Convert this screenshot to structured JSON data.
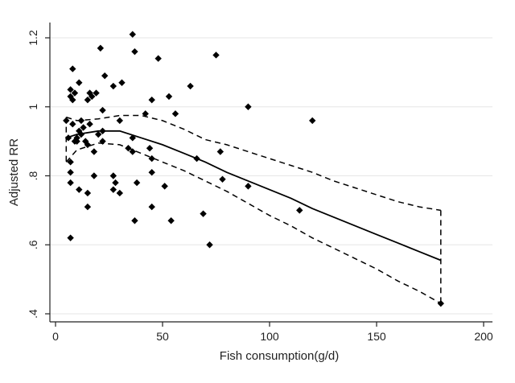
{
  "chart_data": {
    "type": "scatter",
    "title": "",
    "xlabel": "Fish consumption(g/d)",
    "ylabel": "Adjusted RR",
    "xlim": [
      0,
      200
    ],
    "ylim": [
      0.4,
      1.22
    ],
    "x_ticks": [
      0,
      50,
      100,
      150,
      200
    ],
    "x_tick_labels": [
      "0",
      "50",
      "100",
      "150",
      "200"
    ],
    "y_ticks": [
      0.4,
      0.6,
      0.8,
      1.0,
      1.2
    ],
    "y_tick_labels": [
      ".4",
      ".6",
      ".8",
      "1",
      "1.2"
    ],
    "grid": true,
    "points": [
      [
        5,
        0.96
      ],
      [
        6,
        0.91
      ],
      [
        7,
        0.84
      ],
      [
        7,
        0.81
      ],
      [
        7,
        0.78
      ],
      [
        7,
        0.62
      ],
      [
        7,
        1.03
      ],
      [
        7,
        1.05
      ],
      [
        8,
        1.11
      ],
      [
        8,
        1.02
      ],
      [
        8,
        0.95
      ],
      [
        9,
        0.9
      ],
      [
        9,
        1.04
      ],
      [
        10,
        0.91
      ],
      [
        10,
        0.9
      ],
      [
        11,
        1.07
      ],
      [
        11,
        0.93
      ],
      [
        11,
        0.76
      ],
      [
        12,
        0.92
      ],
      [
        12,
        0.96
      ],
      [
        13,
        0.94
      ],
      [
        14,
        0.9
      ],
      [
        15,
        0.75
      ],
      [
        15,
        0.71
      ],
      [
        15,
        0.89
      ],
      [
        15,
        1.02
      ],
      [
        16,
        1.04
      ],
      [
        16,
        0.95
      ],
      [
        17,
        1.03
      ],
      [
        18,
        0.87
      ],
      [
        18,
        0.8
      ],
      [
        19,
        1.04
      ],
      [
        20,
        0.92
      ],
      [
        21,
        1.17
      ],
      [
        22,
        0.99
      ],
      [
        22,
        0.93
      ],
      [
        22,
        0.9
      ],
      [
        23,
        1.09
      ],
      [
        27,
        0.8
      ],
      [
        27,
        0.76
      ],
      [
        27,
        1.06
      ],
      [
        28,
        0.78
      ],
      [
        30,
        0.75
      ],
      [
        30,
        0.96
      ],
      [
        31,
        1.07
      ],
      [
        34,
        0.88
      ],
      [
        36,
        1.21
      ],
      [
        36,
        0.91
      ],
      [
        36,
        0.87
      ],
      [
        37,
        1.16
      ],
      [
        37,
        0.67
      ],
      [
        38,
        0.78
      ],
      [
        42,
        0.98
      ],
      [
        44,
        0.88
      ],
      [
        45,
        0.85
      ],
      [
        45,
        0.81
      ],
      [
        45,
        0.71
      ],
      [
        45,
        1.02
      ],
      [
        48,
        1.14
      ],
      [
        51,
        0.77
      ],
      [
        53,
        1.03
      ],
      [
        54,
        0.67
      ],
      [
        56,
        0.98
      ],
      [
        63,
        1.06
      ],
      [
        66,
        0.85
      ],
      [
        69,
        0.69
      ],
      [
        72,
        0.6
      ],
      [
        75,
        1.15
      ],
      [
        77,
        0.87
      ],
      [
        78,
        0.79
      ],
      [
        90,
        1.0
      ],
      [
        90,
        0.77
      ],
      [
        114,
        0.7
      ],
      [
        120,
        0.96
      ],
      [
        180,
        0.43
      ]
    ],
    "series": [
      {
        "style": "solid",
        "x": [
          5,
          10,
          20,
          30,
          40,
          50,
          60,
          70,
          80,
          90,
          100,
          110,
          120,
          130,
          140,
          150,
          160,
          170,
          180
        ],
        "y": [
          0.91,
          0.92,
          0.93,
          0.93,
          0.91,
          0.89,
          0.865,
          0.84,
          0.81,
          0.785,
          0.76,
          0.735,
          0.705,
          0.68,
          0.655,
          0.63,
          0.605,
          0.58,
          0.555
        ]
      },
      {
        "style": "dashed",
        "x": [
          5,
          10,
          20,
          30,
          40,
          50,
          60,
          70,
          80,
          90,
          100,
          110,
          120,
          130,
          140,
          150,
          160,
          170,
          180
        ],
        "y": [
          0.97,
          0.96,
          0.965,
          0.975,
          0.975,
          0.96,
          0.935,
          0.905,
          0.89,
          0.87,
          0.85,
          0.83,
          0.81,
          0.785,
          0.765,
          0.745,
          0.725,
          0.71,
          0.7
        ]
      },
      {
        "style": "dashed",
        "x": [
          5,
          10,
          20,
          30,
          40,
          50,
          60,
          70,
          80,
          90,
          100,
          110,
          120,
          130,
          140,
          150,
          160,
          170,
          180
        ],
        "y": [
          0.84,
          0.875,
          0.895,
          0.89,
          0.865,
          0.84,
          0.815,
          0.785,
          0.755,
          0.72,
          0.685,
          0.655,
          0.62,
          0.59,
          0.56,
          0.53,
          0.495,
          0.465,
          0.43
        ]
      }
    ]
  }
}
